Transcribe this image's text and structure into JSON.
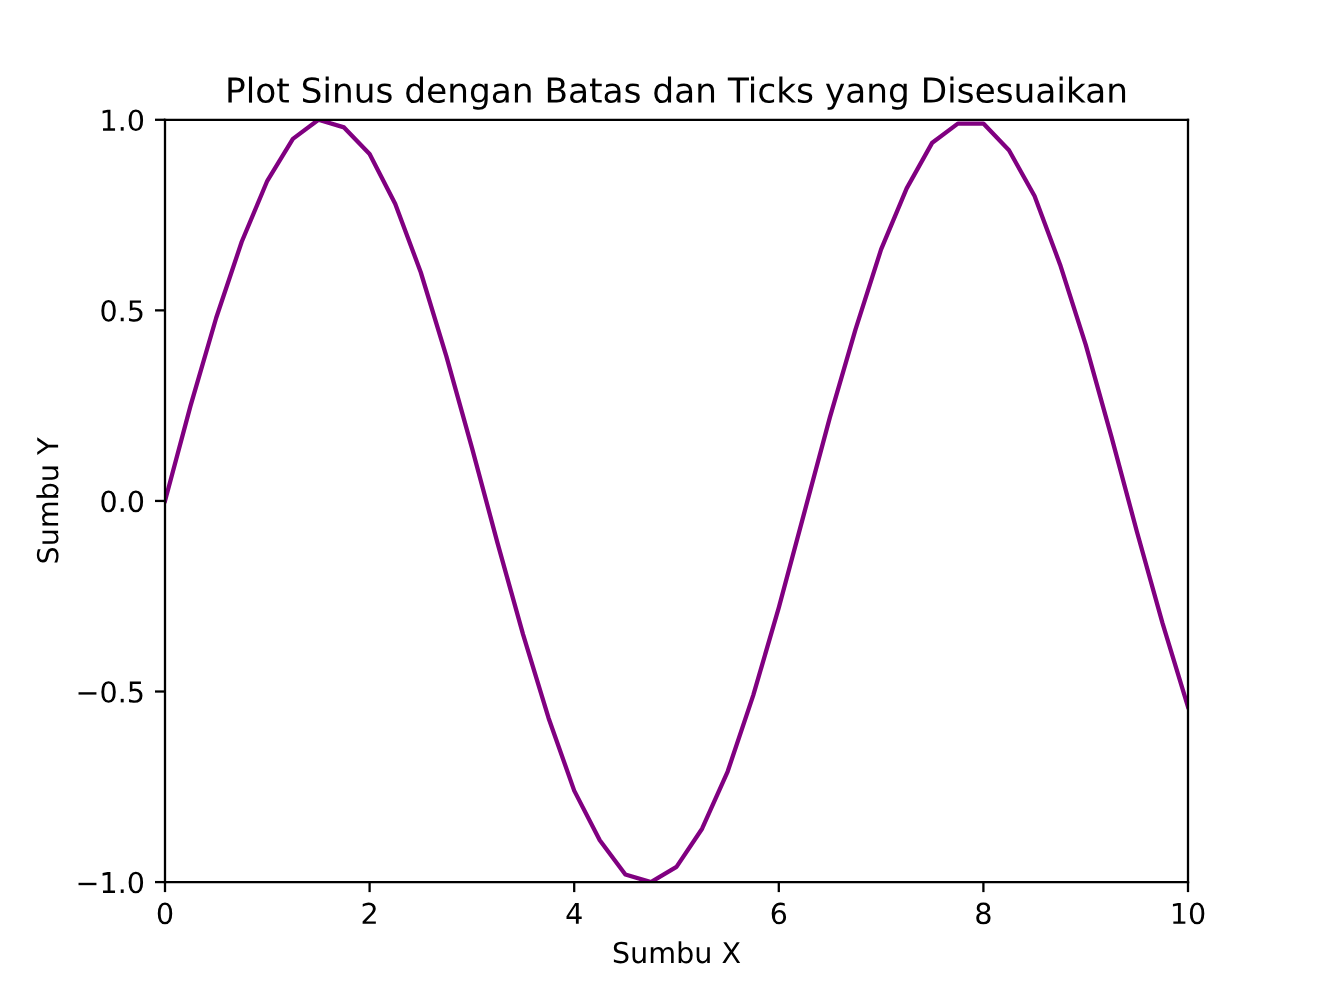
{
  "chart_data": {
    "type": "line",
    "title": "Plot Sinus dengan Batas dan Ticks yang Disesuaikan",
    "xlabel": "Sumbu X",
    "ylabel": "Sumbu Y",
    "x": [
      0,
      0.25,
      0.5,
      0.75,
      1,
      1.25,
      1.5,
      1.75,
      2,
      2.25,
      2.5,
      2.75,
      3,
      3.25,
      3.5,
      3.75,
      4,
      4.25,
      4.5,
      4.75,
      5,
      5.25,
      5.5,
      5.75,
      6,
      6.25,
      6.5,
      6.75,
      7,
      7.25,
      7.5,
      7.75,
      8,
      8.25,
      8.5,
      8.75,
      9,
      9.25,
      9.5,
      9.75,
      10
    ],
    "series": [
      {
        "color": "#800080",
        "values": [
          0,
          0.25,
          0.48,
          0.68,
          0.84,
          0.95,
          1.0,
          0.98,
          0.91,
          0.78,
          0.6,
          0.38,
          0.14,
          -0.11,
          -0.35,
          -0.57,
          -0.76,
          -0.89,
          -0.98,
          -1.0,
          -0.96,
          -0.86,
          -0.71,
          -0.51,
          -0.28,
          -0.03,
          0.22,
          0.45,
          0.66,
          0.82,
          0.94,
          0.99,
          0.99,
          0.92,
          0.8,
          0.62,
          0.41,
          0.17,
          -0.08,
          -0.32,
          -0.54
        ]
      }
    ],
    "xlim": [
      0,
      10
    ],
    "ylim": [
      -1,
      1
    ],
    "xticks": [
      0,
      2,
      4,
      6,
      8,
      10
    ],
    "yticks": [
      {
        "value": -1,
        "label": "−1.0"
      },
      {
        "value": -0.5,
        "label": "−0.5"
      },
      {
        "value": 0,
        "label": "0.0"
      },
      {
        "value": 0.5,
        "label": "0.5"
      },
      {
        "value": 1,
        "label": "1.0"
      }
    ],
    "grid": false,
    "legend": false,
    "marker": "none",
    "line_style": "solid"
  }
}
